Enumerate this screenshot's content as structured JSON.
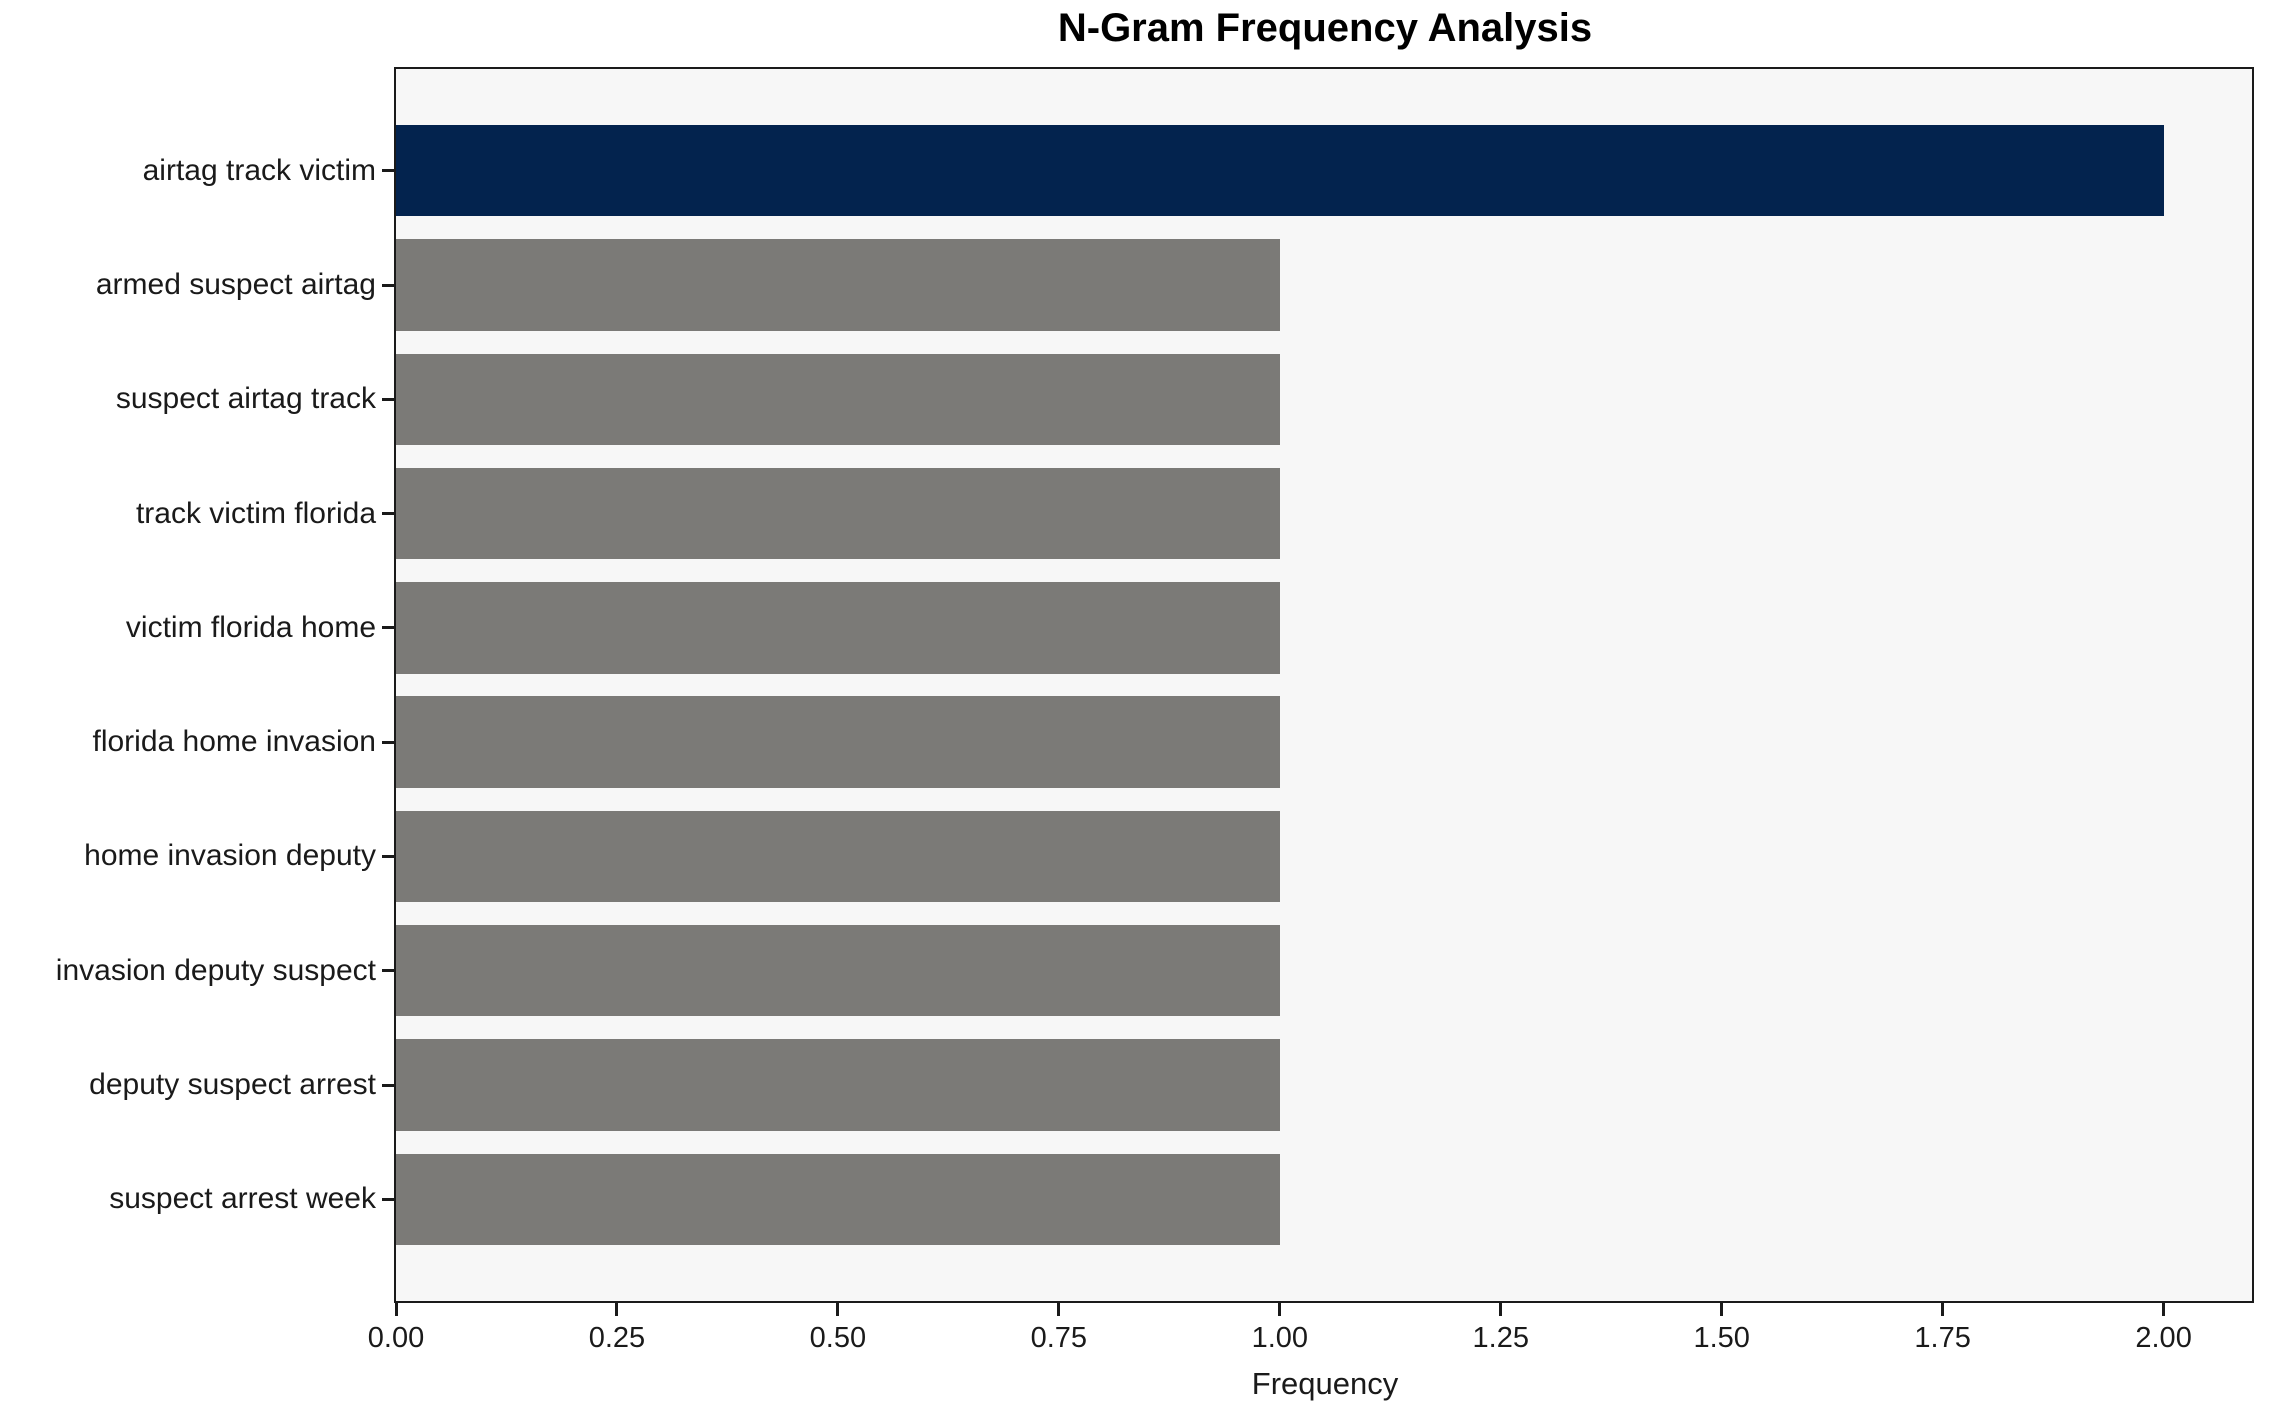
{
  "chart_data": {
    "type": "bar",
    "orientation": "horizontal",
    "title": "N-Gram Frequency Analysis",
    "xlabel": "Frequency",
    "ylabel": "",
    "categories": [
      "airtag track victim",
      "armed suspect airtag",
      "suspect airtag track",
      "track victim florida",
      "victim florida home",
      "florida home invasion",
      "home invasion deputy",
      "invasion deputy suspect",
      "deputy suspect arrest",
      "suspect arrest week"
    ],
    "values": [
      2,
      1,
      1,
      1,
      1,
      1,
      1,
      1,
      1,
      1
    ],
    "bar_colors": [
      "#03234e",
      "#7b7a77",
      "#7b7a77",
      "#7b7a77",
      "#7b7a77",
      "#7b7a77",
      "#7b7a77",
      "#7b7a77",
      "#7b7a77",
      "#7b7a77"
    ],
    "xlim": [
      0,
      2.1
    ],
    "xtick_values": [
      0,
      0.25,
      0.5,
      0.75,
      1.0,
      1.25,
      1.5,
      1.75,
      2.0
    ],
    "xtick_labels": [
      "0.00",
      "0.25",
      "0.50",
      "0.75",
      "1.00",
      "1.25",
      "1.50",
      "1.75",
      "2.00"
    ],
    "grid": false,
    "legend_position": "none",
    "colors": {
      "highlight_bar": "#03234e",
      "default_bar": "#7b7a77",
      "plot_background": "#f7f7f7",
      "figure_background": "#ffffff",
      "axis": "#1a1a1a",
      "text": "#000000"
    }
  }
}
